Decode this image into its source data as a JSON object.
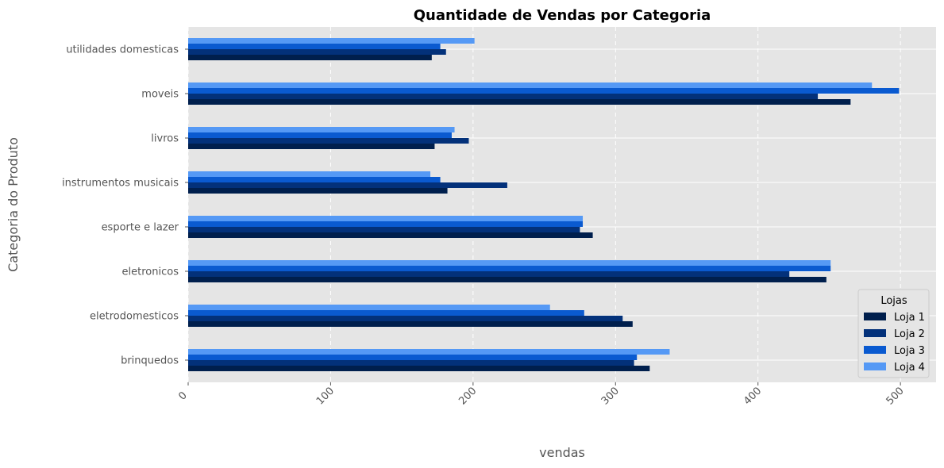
{
  "chart_data": {
    "type": "bar",
    "orientation": "horizontal",
    "title": "Quantidade de Vendas por Categoria",
    "xlabel": "vendas",
    "ylabel": "Categoria do Produto",
    "categories": [
      "brinquedos",
      "eletrodomesticos",
      "eletronicos",
      "esporte e lazer",
      "instrumentos musicais",
      "livros",
      "moveis",
      "utilidades domesticas"
    ],
    "series": [
      {
        "name": "Loja 1",
        "color": "#001f4d",
        "values": [
          324,
          312,
          448,
          284,
          182,
          173,
          465,
          171
        ]
      },
      {
        "name": "Loja 2",
        "color": "#03317a",
        "values": [
          313,
          305,
          422,
          275,
          224,
          197,
          442,
          181
        ]
      },
      {
        "name": "Loja 3",
        "color": "#0a5ad0",
        "values": [
          315,
          278,
          451,
          277,
          177,
          185,
          499,
          177
        ]
      },
      {
        "name": "Loja 4",
        "color": "#5599f5",
        "values": [
          338,
          254,
          451,
          277,
          170,
          187,
          480,
          201
        ]
      }
    ],
    "xlim": [
      0,
      525
    ],
    "xticks": [
      0,
      100,
      200,
      300,
      400,
      500
    ],
    "grid": true,
    "legend": {
      "title": "Lojas",
      "position": "lower right"
    }
  }
}
